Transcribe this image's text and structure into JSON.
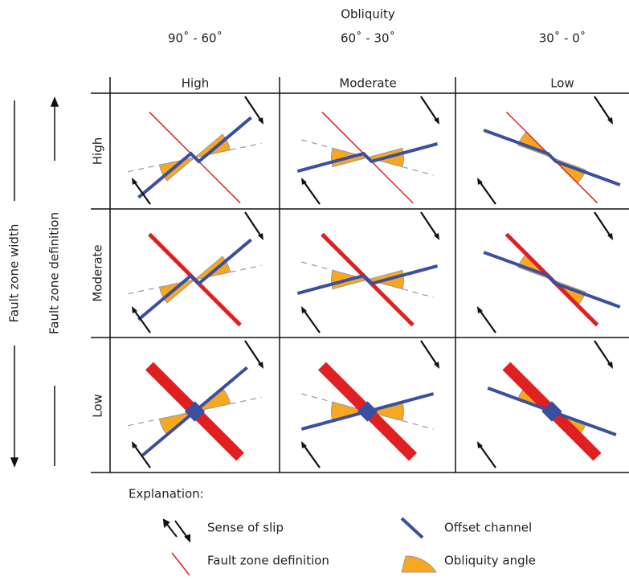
{
  "header": {
    "title": "Obliquity",
    "ranges": [
      "90˚ - 60˚",
      "60˚ - 30˚",
      "30˚ - 0˚"
    ],
    "columns": [
      "High",
      "Moderate",
      "Low"
    ]
  },
  "rows": [
    "High",
    "Moderate",
    "Low"
  ],
  "axes": {
    "width": "Fault zone width",
    "definition": "Fault zone definition"
  },
  "legend": {
    "title": "Explanation:",
    "items": [
      "Sense of slip",
      "Offset channel",
      "Fault zone definition",
      "Obliquity angle"
    ]
  }
}
